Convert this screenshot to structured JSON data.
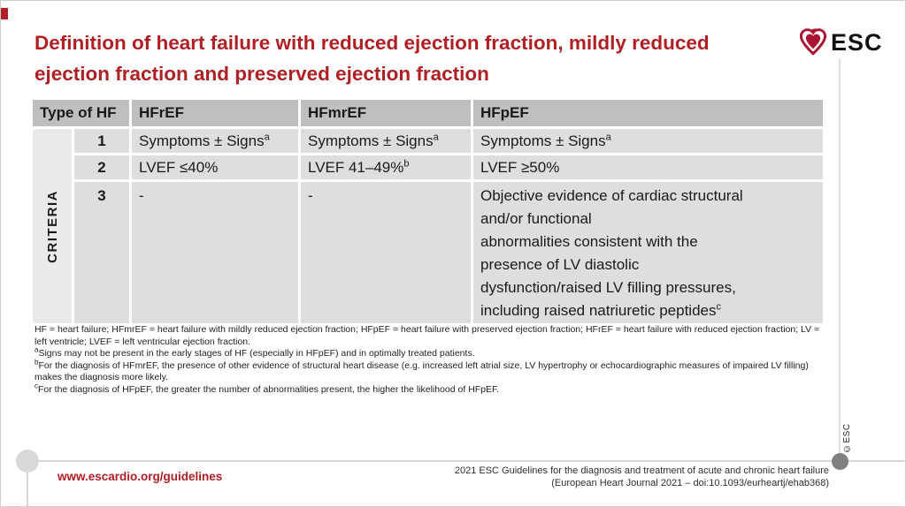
{
  "title": {
    "line1": "Definition of heart failure with reduced ejection fraction, mildly reduced",
    "line2": "ejection fraction and preserved ejection fraction"
  },
  "logo": {
    "text": "ESC",
    "icon": "heart-icon"
  },
  "copyright_vertical": "©ESC",
  "colors": {
    "accent_red": "#b01f24",
    "logo_red": "#ab1332",
    "header_gray": "#bfbfbf",
    "row_gray": "#dedede",
    "criteria_gray": "#eaeaea"
  },
  "table": {
    "corner_header": "Type of HF",
    "criteria_label": "CRITERIA",
    "columns": [
      "HFrEF",
      "HFmrEF",
      "HFpEF"
    ],
    "rows": [
      {
        "num": "1",
        "cells": [
          {
            "text": "Symptoms ± Signs",
            "sup": "a"
          },
          {
            "text": "Symptoms ± Signs",
            "sup": "a"
          },
          {
            "text": "Symptoms ± Signs",
            "sup": "a"
          }
        ]
      },
      {
        "num": "2",
        "cells": [
          {
            "text": "LVEF ≤40%",
            "sup": ""
          },
          {
            "text": "LVEF 41–49%",
            "sup": "b"
          },
          {
            "text": "LVEF ≥50%",
            "sup": ""
          }
        ]
      },
      {
        "num": "3",
        "cells": [
          {
            "text": "-",
            "sup": ""
          },
          {
            "text": "-",
            "sup": ""
          },
          {
            "lines": [
              "Objective evidence of cardiac structural",
              "and/or functional",
              "abnormalities consistent with the",
              "presence of LV diastolic",
              "dysfunction/raised LV filling pressures,",
              "including raised natriuretic peptides"
            ],
            "sup": "c"
          }
        ]
      }
    ]
  },
  "footnotes": [
    {
      "sup": "",
      "text": "HF = heart failure; HFmrEF = heart failure with mildly reduced ejection fraction; HFpEF = heart failure with preserved ejection fraction; HFrEF = heart failure with reduced ejection fraction; LV = left ventricle; LVEF = left ventricular ejection fraction."
    },
    {
      "sup": "a",
      "text": "Signs may not be present in the early stages of HF (especially in HFpEF) and in optimally treated patients."
    },
    {
      "sup": "b",
      "text": "For the diagnosis of HFmrEF, the presence of other evidence of structural heart disease (e.g. increased left atrial size, LV hypertrophy or echocardiographic measures of impaired LV filling) makes the diagnosis more likely."
    },
    {
      "sup": "c",
      "text": "For the diagnosis of HFpEF, the greater the number of abnormalities present, the higher the likelihood of HFpEF."
    }
  ],
  "footer": {
    "link": "www.escardio.org/guidelines",
    "citation_line1": "2021 ESC Guidelines for the diagnosis and treatment of acute and chronic heart failure",
    "citation_line2": "(European Heart Journal 2021 – doi:10.1093/eurheartj/ehab368)"
  }
}
